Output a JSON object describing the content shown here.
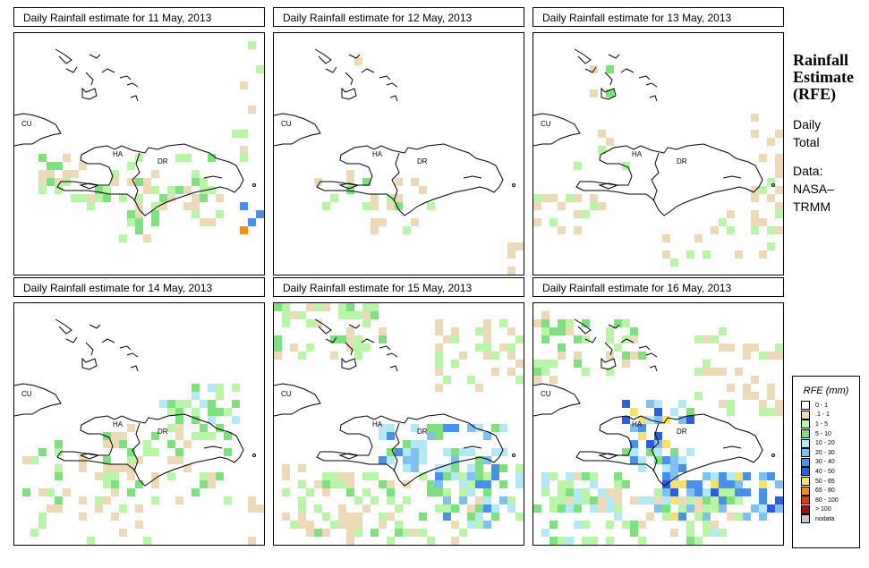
{
  "panels": [
    {
      "title": "Daily Rainfall estimate for  11 May, 2013"
    },
    {
      "title": "Daily Rainfall estimate for  12 May, 2013"
    },
    {
      "title": "Daily Rainfall estimate for  13 May, 2013"
    },
    {
      "title": "Daily Rainfall estimate for  14 May, 2013"
    },
    {
      "title": "Daily Rainfall estimate for  15 May, 2013"
    },
    {
      "title": "Daily Rainfall estimate for  16 May, 2013"
    }
  ],
  "map_labels": {
    "cuba": "CU",
    "haiti": "HA",
    "dr": "DR"
  },
  "sidebar": {
    "title_line1": "Rainfall",
    "title_line2": "Estimate",
    "title_line3": "(RFE)",
    "period_line1": "Daily",
    "period_line2": "Total",
    "source_line1": "Data:",
    "source_line2": "NASA–",
    "source_line3": "TRMM"
  },
  "legend": {
    "title": "RFE (mm)",
    "classes": [
      {
        "label": "0 - 1",
        "color": "#ffffff"
      },
      {
        "label": ".1 - 1",
        "color": "#ecd9b8"
      },
      {
        "label": "1 - 5",
        "color": "#b8f5a6"
      },
      {
        "label": "5 - 10",
        "color": "#7fe07f"
      },
      {
        "label": "10 - 20",
        "color": "#b3e8f5"
      },
      {
        "label": "20 - 30",
        "color": "#7fc0f0"
      },
      {
        "label": "30 - 40",
        "color": "#4a90e8"
      },
      {
        "label": "40 - 50",
        "color": "#2a5fd8"
      },
      {
        "label": "50 - 65",
        "color": "#f5e070"
      },
      {
        "label": "65 - 80",
        "color": "#f58c1a"
      },
      {
        "label": "80 - 100",
        "color": "#e03a1a"
      },
      {
        "label": "> 100",
        "color": "#a01010"
      },
      {
        "label": "nodata",
        "color": "#c8c8c8"
      }
    ]
  }
}
